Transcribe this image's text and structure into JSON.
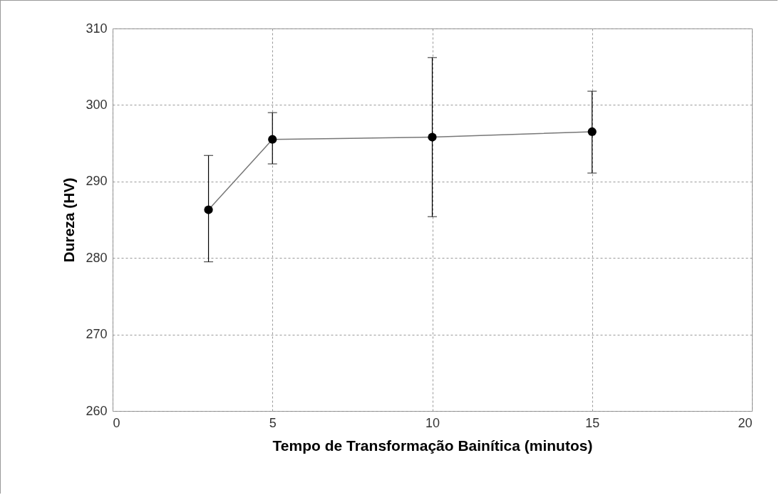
{
  "chart_data": {
    "type": "line",
    "xlabel": "Tempo de Transformação Bainítica (minutos)",
    "ylabel": "Dureza (HV)",
    "x": [
      3,
      5,
      10,
      15
    ],
    "series": [
      {
        "color": "#000000",
        "values": [
          286.3,
          295.5,
          295.8,
          296.5
        ],
        "errors": [
          [
            279.5,
            293.4
          ],
          [
            292.3,
            299.0
          ],
          [
            285.4,
            306.2
          ],
          [
            291.1,
            301.8
          ]
        ]
      }
    ],
    "xlim": [
      0,
      20
    ],
    "xticks": [
      0,
      5,
      10,
      15,
      20
    ],
    "ylim": [
      260,
      310
    ],
    "yticks": [
      260,
      270,
      280,
      290,
      300,
      310
    ],
    "grid": true,
    "marker": "circle",
    "line_style": "solid"
  }
}
